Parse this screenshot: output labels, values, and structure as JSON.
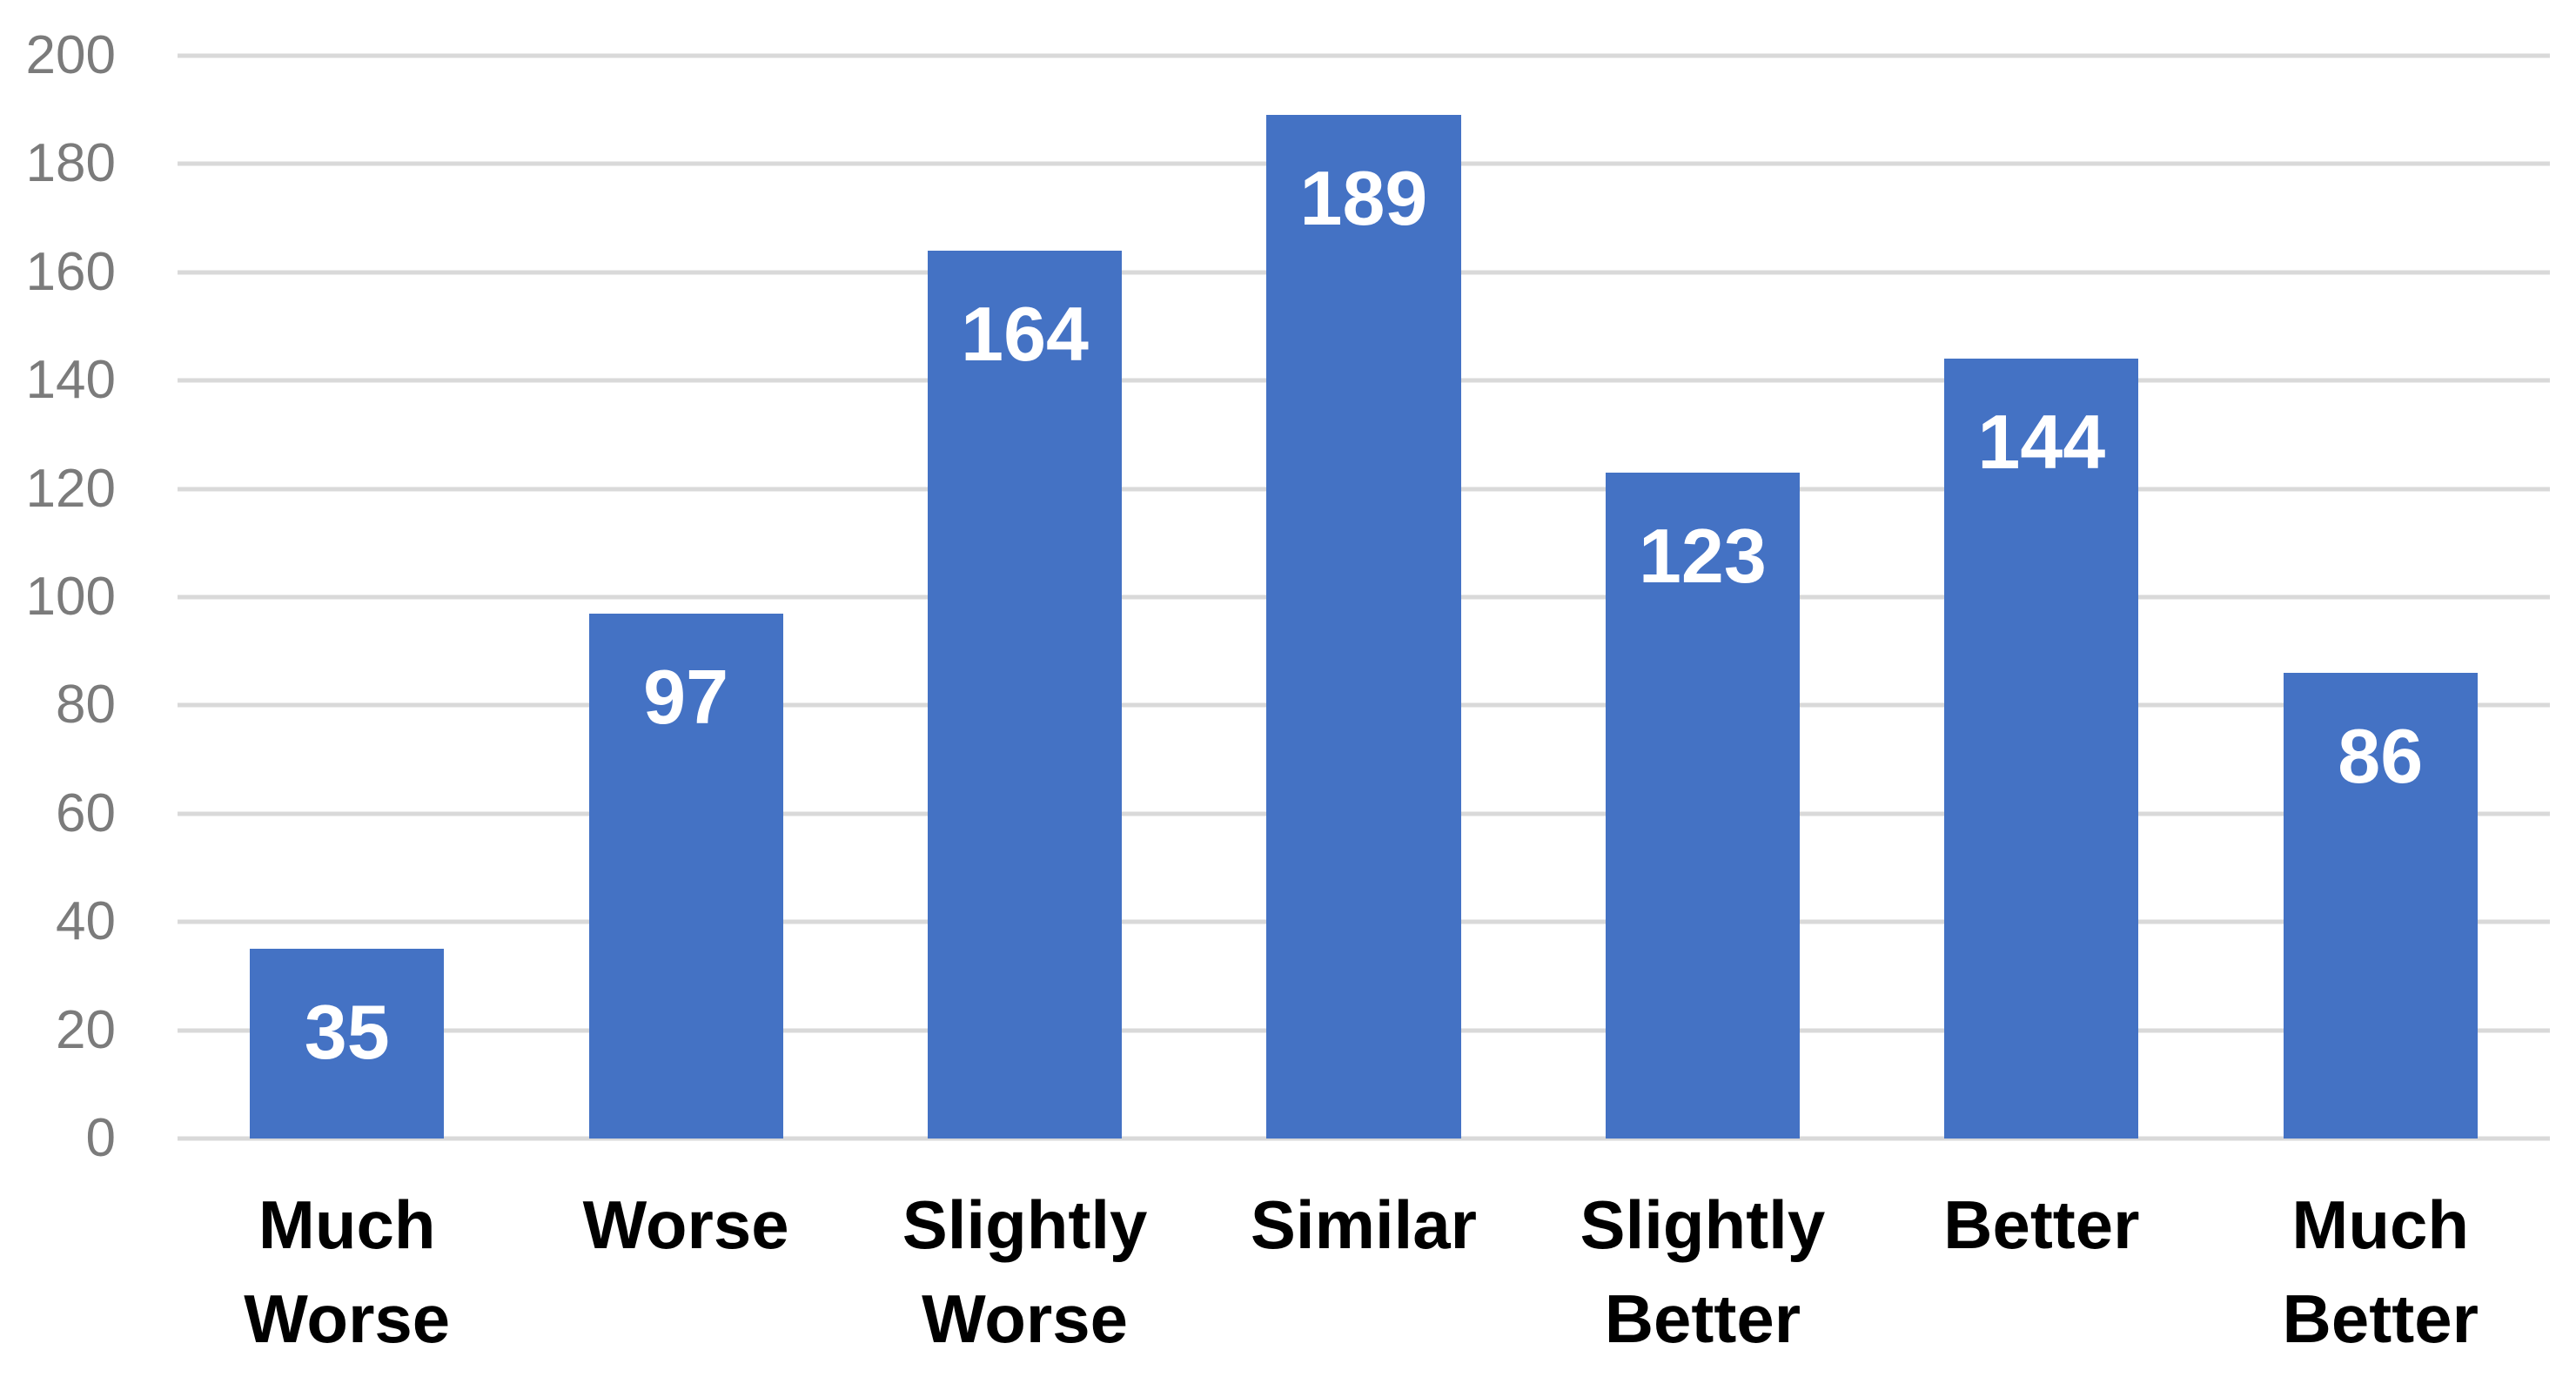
{
  "chart_data": {
    "type": "bar",
    "title": "",
    "xlabel": "",
    "ylabel": "",
    "categories": [
      "Much Worse",
      "Worse",
      "Slightly Worse",
      "Similar",
      "Slightly Better",
      "Better",
      "Much Better"
    ],
    "values": [
      35,
      97,
      164,
      189,
      123,
      144,
      86
    ],
    "yticks": [
      0,
      20,
      40,
      60,
      80,
      100,
      120,
      140,
      160,
      180,
      200
    ],
    "ylim": [
      0,
      200
    ],
    "grid": "horizontal-only",
    "legend_position": "none",
    "data_label_position": "inside-end",
    "colors": {
      "bar": "#4472C4",
      "gridline": "#D9D9D9",
      "axis_tick_label": "#7B7B7B",
      "category_label": "#000000",
      "data_label": "#FFFFFF",
      "background": "#FFFFFF"
    }
  }
}
